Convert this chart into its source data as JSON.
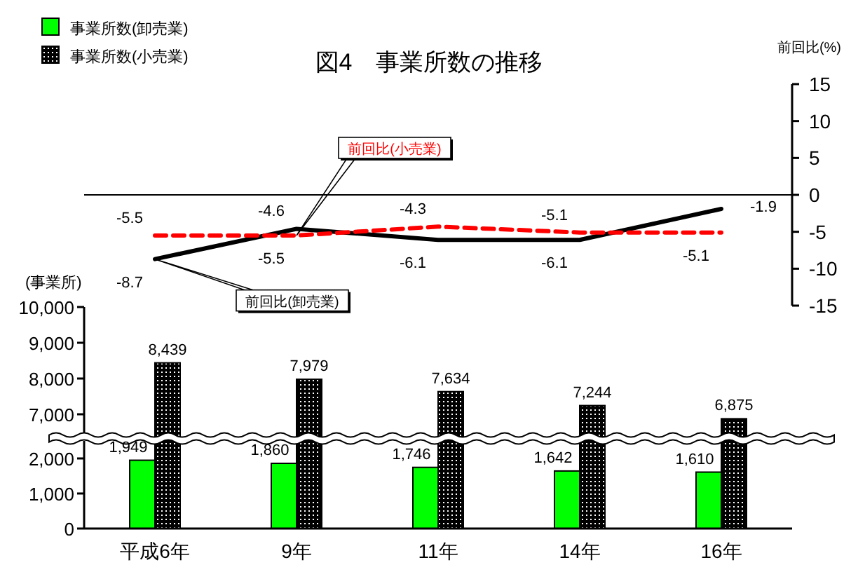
{
  "chart_data": [
    {
      "type": "line",
      "title": "図4　事業所数の推移",
      "ylabel": "前回比(%)",
      "categories": [
        null,
        null,
        null,
        null,
        null
      ],
      "series": [
        {
          "name": "前回比(卸売業)",
          "color": "#000000",
          "line_style": "solid",
          "values": [
            -8.7,
            -4.6,
            -6.1,
            -6.1,
            -1.9
          ]
        },
        {
          "name": "前回比(小売業)",
          "color": "#ff0000",
          "line_style": "dashed",
          "values": [
            -5.5,
            -5.5,
            -4.3,
            -5.1,
            -5.1
          ]
        }
      ],
      "ylim": [
        -15,
        15
      ],
      "yticks": [
        -15,
        -10,
        -5,
        0,
        5,
        10,
        15
      ],
      "ref_lines": [
        {
          "axis": "y",
          "value": 0
        }
      ],
      "data_labels": true,
      "tick_labels": "y"
    },
    {
      "type": "bar",
      "ylabel": "(事業所)",
      "categories": [
        null,
        null,
        null,
        null,
        null
      ],
      "series": [
        {
          "color": "#000000",
          "values": [
            8439,
            7979,
            7634,
            7244,
            6875
          ],
          "value_labels": [
            "8,439",
            "7,979",
            "7,634",
            "7,244",
            "6,875"
          ]
        }
      ],
      "ylim": [
        6400,
        10000
      ],
      "yticks": [
        {
          "value": 7000,
          "label": "7,000"
        },
        {
          "value": 8000,
          "label": "8,000"
        },
        {
          "value": 9000,
          "label": "9,000"
        },
        {
          "value": 10000,
          "label": "10,000"
        }
      ],
      "tick_labels": "y"
    },
    {
      "type": "bar",
      "categories": [
        "平成6年",
        "9年",
        "11年",
        "14年",
        "16年"
      ],
      "series": [
        {
          "name": "事業所数(卸売業)",
          "color": "#00ff00",
          "values": [
            1949,
            1860,
            1746,
            1642,
            1610
          ],
          "value_labels": [
            "1,949",
            "1,860",
            "1,746",
            "1,642",
            "1,610"
          ]
        },
        {
          "name": "事業所数(小売業)",
          "color": "#000000",
          "values": [
            null,
            null,
            null,
            null,
            null
          ]
        }
      ],
      "ylim": [
        0,
        2500
      ],
      "yticks": [
        0,
        {
          "value": 1000,
          "label": "1,000"
        },
        {
          "value": 2000,
          "label": "2,000"
        }
      ],
      "legend": "top left"
    }
  ]
}
